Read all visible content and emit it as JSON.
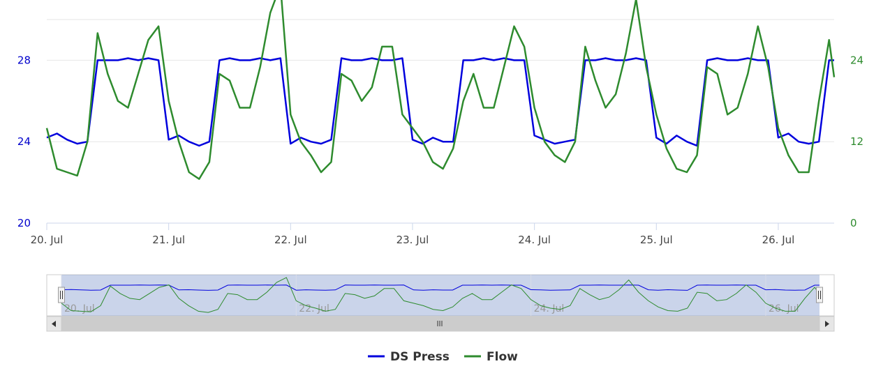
{
  "chart_data": {
    "type": "line",
    "title": "",
    "x_axis": {
      "type": "datetime",
      "range": [
        "2023-07-20T00:00",
        "2023-07-26T11:00"
      ],
      "tick_labels": [
        "20. Jul",
        "21. Jul",
        "22. Jul",
        "23. Jul",
        "24. Jul",
        "25. Jul",
        "26. Jul"
      ]
    },
    "y_axes": [
      {
        "id": "left",
        "range": [
          20,
          30
        ],
        "tick_values": [
          20,
          24,
          28
        ],
        "tick_labels": [
          "20",
          "24",
          "28"
        ],
        "color": "#0000cc"
      },
      {
        "id": "right",
        "range": [
          0,
          30
        ],
        "tick_values": [
          0,
          12,
          24
        ],
        "tick_labels": [
          "0",
          "12",
          "24"
        ],
        "color": "#2e8b2e"
      }
    ],
    "grid": true,
    "legend": {
      "position": "bottom-center"
    },
    "navigator": {
      "visible": true,
      "range": [
        "2023-07-20T00:00",
        "2023-07-26T11:00"
      ]
    },
    "series": [
      {
        "name": "DS Press",
        "color": "#0000dd",
        "axis": "left",
        "x": [
          "2023-07-20T00:00",
          "2023-07-20T02:00",
          "2023-07-20T04:00",
          "2023-07-20T06:00",
          "2023-07-20T08:00",
          "2023-07-20T10:00",
          "2023-07-20T12:00",
          "2023-07-20T14:00",
          "2023-07-20T16:00",
          "2023-07-20T18:00",
          "2023-07-20T20:00",
          "2023-07-20T22:00",
          "2023-07-21T00:00",
          "2023-07-21T02:00",
          "2023-07-21T04:00",
          "2023-07-21T06:00",
          "2023-07-21T08:00",
          "2023-07-21T10:00",
          "2023-07-21T12:00",
          "2023-07-21T14:00",
          "2023-07-21T16:00",
          "2023-07-21T18:00",
          "2023-07-21T20:00",
          "2023-07-21T22:00",
          "2023-07-22T00:00",
          "2023-07-22T02:00",
          "2023-07-22T04:00",
          "2023-07-22T06:00",
          "2023-07-22T08:00",
          "2023-07-22T10:00",
          "2023-07-22T12:00",
          "2023-07-22T14:00",
          "2023-07-22T16:00",
          "2023-07-22T18:00",
          "2023-07-22T20:00",
          "2023-07-22T22:00",
          "2023-07-23T00:00",
          "2023-07-23T02:00",
          "2023-07-23T04:00",
          "2023-07-23T06:00",
          "2023-07-23T08:00",
          "2023-07-23T10:00",
          "2023-07-23T12:00",
          "2023-07-23T14:00",
          "2023-07-23T16:00",
          "2023-07-23T18:00",
          "2023-07-23T20:00",
          "2023-07-23T22:00",
          "2023-07-24T00:00",
          "2023-07-24T02:00",
          "2023-07-24T04:00",
          "2023-07-24T06:00",
          "2023-07-24T08:00",
          "2023-07-24T10:00",
          "2023-07-24T12:00",
          "2023-07-24T14:00",
          "2023-07-24T16:00",
          "2023-07-24T18:00",
          "2023-07-24T20:00",
          "2023-07-24T22:00",
          "2023-07-25T00:00",
          "2023-07-25T02:00",
          "2023-07-25T04:00",
          "2023-07-25T06:00",
          "2023-07-25T08:00",
          "2023-07-25T10:00",
          "2023-07-25T12:00",
          "2023-07-25T14:00",
          "2023-07-25T16:00",
          "2023-07-25T18:00",
          "2023-07-25T20:00",
          "2023-07-25T22:00",
          "2023-07-26T00:00",
          "2023-07-26T02:00",
          "2023-07-26T04:00",
          "2023-07-26T06:00",
          "2023-07-26T08:00",
          "2023-07-26T10:00",
          "2023-07-26T11:00"
        ],
        "y": [
          24.2,
          24.4,
          24.1,
          23.9,
          24.0,
          28.0,
          28.0,
          28.0,
          28.1,
          28.0,
          28.1,
          28.0,
          24.1,
          24.3,
          24.0,
          23.8,
          24.0,
          28.0,
          28.1,
          28.0,
          28.0,
          28.1,
          28.0,
          28.1,
          23.9,
          24.2,
          24.0,
          23.9,
          24.1,
          28.1,
          28.0,
          28.0,
          28.1,
          28.0,
          28.0,
          28.1,
          24.1,
          23.9,
          24.2,
          24.0,
          24.0,
          28.0,
          28.0,
          28.1,
          28.0,
          28.1,
          28.0,
          28.0,
          24.3,
          24.1,
          23.9,
          24.0,
          24.1,
          28.0,
          28.0,
          28.1,
          28.0,
          28.0,
          28.1,
          28.0,
          24.2,
          23.9,
          24.3,
          24.0,
          23.8,
          28.0,
          28.1,
          28.0,
          28.0,
          28.1,
          28.0,
          28.0,
          24.2,
          24.4,
          24.0,
          23.9,
          24.0,
          28.0,
          28.0
        ]
      },
      {
        "name": "Flow",
        "color": "#2e8b2e",
        "axis": "right",
        "x": [
          "2023-07-20T00:00",
          "2023-07-20T02:00",
          "2023-07-20T04:00",
          "2023-07-20T06:00",
          "2023-07-20T08:00",
          "2023-07-20T10:00",
          "2023-07-20T12:00",
          "2023-07-20T14:00",
          "2023-07-20T16:00",
          "2023-07-20T18:00",
          "2023-07-20T20:00",
          "2023-07-20T22:00",
          "2023-07-21T00:00",
          "2023-07-21T02:00",
          "2023-07-21T04:00",
          "2023-07-21T06:00",
          "2023-07-21T08:00",
          "2023-07-21T10:00",
          "2023-07-21T12:00",
          "2023-07-21T14:00",
          "2023-07-21T16:00",
          "2023-07-21T18:00",
          "2023-07-21T20:00",
          "2023-07-21T22:00",
          "2023-07-22T00:00",
          "2023-07-22T02:00",
          "2023-07-22T04:00",
          "2023-07-22T06:00",
          "2023-07-22T08:00",
          "2023-07-22T10:00",
          "2023-07-22T12:00",
          "2023-07-22T14:00",
          "2023-07-22T16:00",
          "2023-07-22T18:00",
          "2023-07-22T20:00",
          "2023-07-22T22:00",
          "2023-07-23T00:00",
          "2023-07-23T02:00",
          "2023-07-23T04:00",
          "2023-07-23T06:00",
          "2023-07-23T08:00",
          "2023-07-23T10:00",
          "2023-07-23T12:00",
          "2023-07-23T14:00",
          "2023-07-23T16:00",
          "2023-07-23T18:00",
          "2023-07-23T20:00",
          "2023-07-23T22:00",
          "2023-07-24T00:00",
          "2023-07-24T02:00",
          "2023-07-24T04:00",
          "2023-07-24T06:00",
          "2023-07-24T08:00",
          "2023-07-24T10:00",
          "2023-07-24T12:00",
          "2023-07-24T14:00",
          "2023-07-24T16:00",
          "2023-07-24T18:00",
          "2023-07-24T20:00",
          "2023-07-24T22:00",
          "2023-07-25T00:00",
          "2023-07-25T02:00",
          "2023-07-25T04:00",
          "2023-07-25T06:00",
          "2023-07-25T08:00",
          "2023-07-25T10:00",
          "2023-07-25T12:00",
          "2023-07-25T14:00",
          "2023-07-25T16:00",
          "2023-07-25T18:00",
          "2023-07-25T20:00",
          "2023-07-25T22:00",
          "2023-07-26T00:00",
          "2023-07-26T02:00",
          "2023-07-26T04:00",
          "2023-07-26T06:00",
          "2023-07-26T08:00",
          "2023-07-26T10:00",
          "2023-07-26T11:00"
        ],
        "y": [
          14,
          8,
          7.5,
          7,
          12,
          28,
          22,
          18,
          17,
          22,
          27,
          29,
          18,
          12,
          7.5,
          6.5,
          9,
          22,
          21,
          17,
          17,
          23,
          31,
          35,
          16,
          12,
          10,
          7.5,
          9,
          22,
          21,
          18,
          20,
          26,
          26,
          16,
          14,
          12,
          9,
          8,
          11,
          18,
          22,
          17,
          17,
          23,
          29,
          26,
          17,
          12,
          10,
          9,
          12,
          26,
          21,
          17,
          19,
          25,
          33,
          23,
          16,
          11,
          8,
          7.5,
          10,
          23,
          22,
          16,
          17,
          22,
          29,
          23,
          14,
          10,
          7.5,
          7.5,
          18,
          27,
          21.5
        ]
      }
    ]
  }
}
